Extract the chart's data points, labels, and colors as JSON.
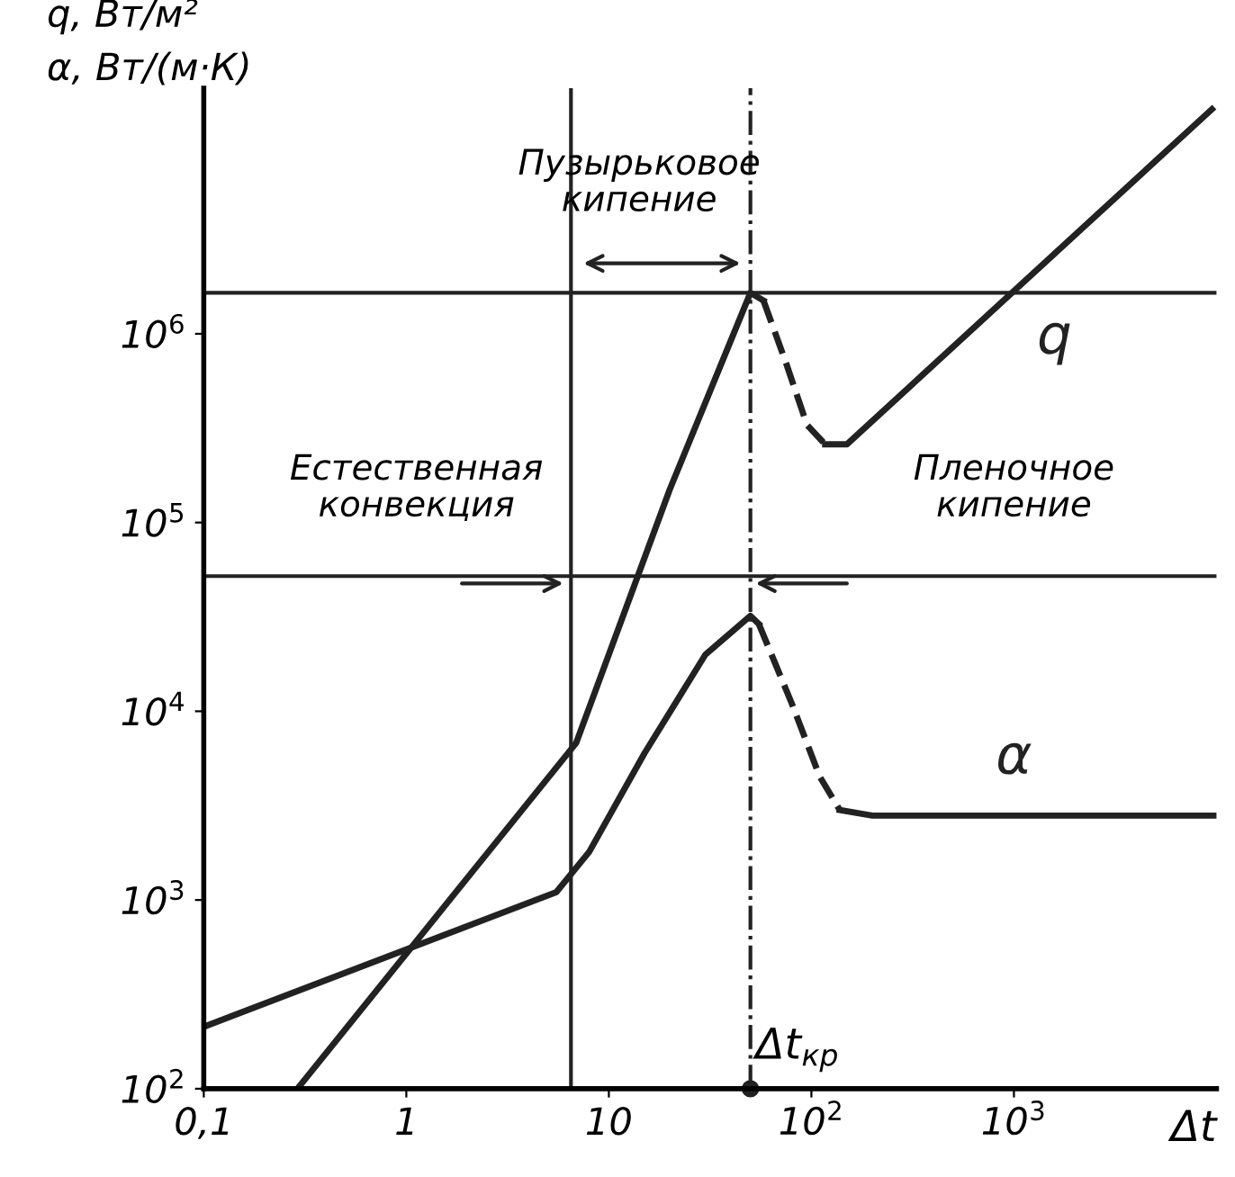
{
  "chart_data": {
    "type": "line",
    "xlabel": "Δt",
    "ylabel": "q, Вт/м²\nα, Вт/(м·К)",
    "log": "xy",
    "xlim": [
      0.1,
      10000
    ],
    "ylim": [
      100,
      20000000
    ],
    "xticks": [
      {
        "value": 0.1,
        "label": "0,1"
      },
      1,
      10,
      {
        "value": 100,
        "label": "10$^{2}$"
      },
      {
        "value": 1000,
        "label": "10$^{3}$"
      }
    ],
    "yticks": [
      {
        "value": 100,
        "label": "10$^{2}$"
      },
      {
        "value": 1000,
        "label": "10$^{3}$"
      },
      {
        "value": 10000,
        "label": "10$^{4}$"
      },
      {
        "value": 100000,
        "label": "10$^{5}$"
      },
      {
        "value": 1000000,
        "label": "10$^{6}$"
      }
    ],
    "grid": false,
    "legend": false,
    "marker": "none",
    "series": [
      {
        "name": "q",
        "color": "#222222",
        "line_style": "solid",
        "x": [
          0.29,
          6.9,
          20,
          50,
          58
        ],
        "values": [
          100,
          6800,
          150000,
          1650000,
          1500000
        ]
      },
      {
        "color": "#222222",
        "line_style": "dashed",
        "x": [
          58,
          75,
          95,
          117
        ],
        "values": [
          1500000,
          700000,
          330000,
          260000
        ]
      },
      {
        "color": "#222222",
        "line_style": "solid",
        "x": [
          117,
          150,
          9500
        ],
        "values": [
          260000,
          260000,
          15500000
        ]
      },
      {
        "name": "α",
        "color": "#222222",
        "line_style": "solid",
        "x": [
          0.1,
          5.5,
          8,
          15,
          30,
          50,
          55
        ],
        "values": [
          213,
          1100,
          1800,
          6000,
          20000,
          32000,
          29000
        ]
      },
      {
        "color": "#222222",
        "line_style": "dashed",
        "x": [
          55,
          80,
          110,
          138
        ],
        "values": [
          29000,
          11000,
          4500,
          3000
        ]
      },
      {
        "color": "#222222",
        "line_style": "solid",
        "x": [
          138,
          200,
          10000
        ],
        "values": [
          3000,
          2800,
          2800
        ]
      }
    ],
    "ref_lines": [
      {
        "axis": "x",
        "value": 6.5,
        "line_style": "solid"
      },
      {
        "axis": "x",
        "value": 50,
        "line_style": "dashdot",
        "label": "Δt$_{кр}$"
      },
      {
        "axis": "y",
        "value": 1650000,
        "line_style": "solid"
      },
      {
        "axis": "y",
        "value": 52000,
        "line_style": "solid"
      }
    ],
    "annotations": [
      "Естественная\nконвекция",
      "Пузырьковое\nкипение",
      "Пленочное\nкипение"
    ]
  }
}
